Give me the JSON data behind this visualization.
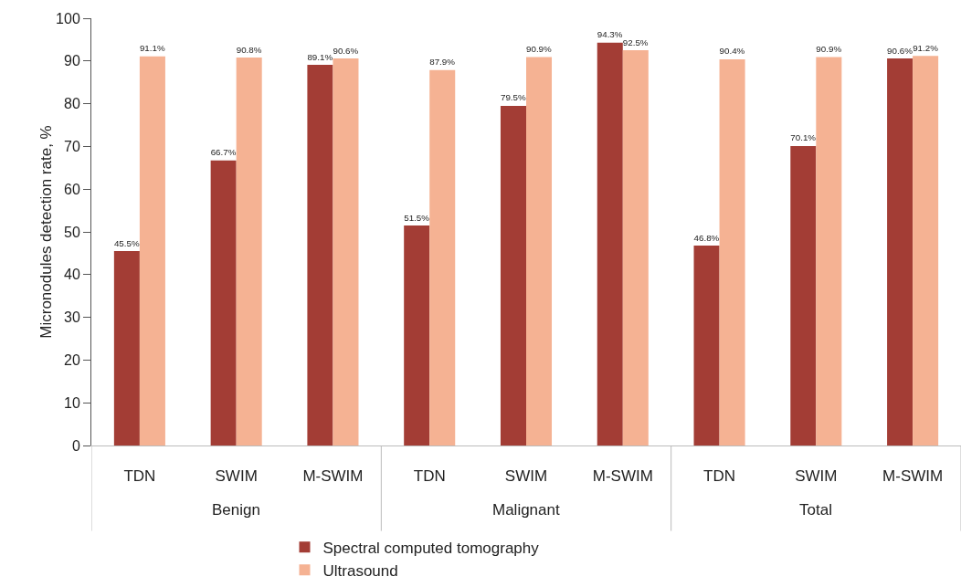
{
  "chart_data": {
    "type": "bar",
    "ylabel": "Micronodules detection rate, %",
    "categories": [
      "TDN",
      "SWIM",
      "M-SWIM",
      "TDN",
      "SWIM",
      "M-SWIM",
      "TDN",
      "SWIM",
      "M-SWIM"
    ],
    "annotations": [
      "Benign",
      "Malignant",
      "Total"
    ],
    "series": [
      {
        "name": "Spectral computed tomography",
        "color": "#a33d35",
        "values": [
          45.5,
          66.7,
          89.1,
          51.5,
          79.5,
          94.3,
          46.8,
          70.1,
          90.6
        ],
        "value_labels": [
          "45.5%",
          "66.7%",
          "89.1%",
          "51.5%",
          "79.5%",
          "94.3%",
          "46.8%",
          "70.1%",
          "90.6%"
        ]
      },
      {
        "name": "Ultrasound",
        "color": "#f5b293",
        "values": [
          91.1,
          90.8,
          90.6,
          87.9,
          90.9,
          92.5,
          90.4,
          90.9,
          91.2
        ],
        "value_labels": [
          "91.1%",
          "90.8%",
          "90.6%",
          "87.9%",
          "90.9%",
          "92.5%",
          "90.4%",
          "90.9%",
          "91.2%"
        ]
      }
    ],
    "ylim": [
      0,
      100
    ],
    "yticks": [
      0,
      10,
      20,
      30,
      40,
      50,
      60,
      70,
      80,
      90,
      100
    ],
    "grid": false,
    "legend": "bottom"
  }
}
